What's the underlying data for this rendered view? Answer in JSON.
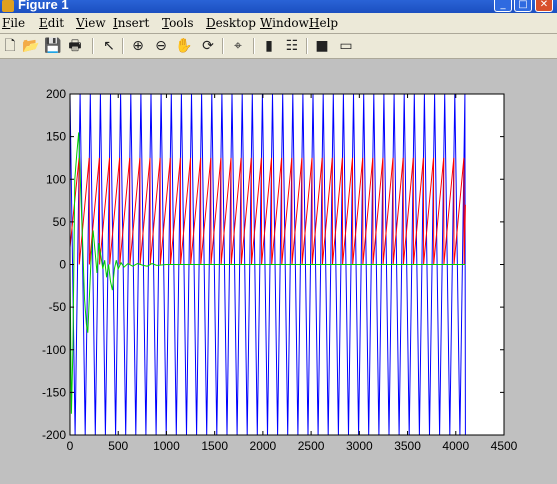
{
  "window": {
    "title": "Figure 1",
    "minimize_glyph": "_",
    "maximize_glyph": "□",
    "close_glyph": "✕"
  },
  "menu": {
    "items": [
      {
        "name": "file",
        "label": "File",
        "u": "F",
        "rest": "ile"
      },
      {
        "name": "edit",
        "label": "Edit",
        "u": "E",
        "rest": "dit"
      },
      {
        "name": "view",
        "label": "View",
        "u": "V",
        "rest": "iew"
      },
      {
        "name": "insert",
        "label": "Insert",
        "u": "I",
        "rest": "nsert"
      },
      {
        "name": "tools",
        "label": "Tools",
        "u": "T",
        "rest": "ools"
      },
      {
        "name": "desktop",
        "label": "Desktop",
        "u": "D",
        "rest": "esktop"
      },
      {
        "name": "window",
        "label": "Window",
        "u": "W",
        "rest": "indow"
      },
      {
        "name": "help",
        "label": "Help",
        "u": "H",
        "rest": "elp"
      }
    ]
  },
  "toolbar": {
    "buttons": [
      {
        "name": "new-figure-icon",
        "glyph": "🗋"
      },
      {
        "name": "open-file-icon",
        "glyph": "📂"
      },
      {
        "name": "save-figure-icon",
        "glyph": "💾"
      },
      {
        "name": "print-figure-icon",
        "glyph": "🖶"
      },
      {
        "name": "edit-plot-icon",
        "glyph": "↖"
      },
      {
        "name": "zoom-in-icon",
        "glyph": "⊕"
      },
      {
        "name": "zoom-out-icon",
        "glyph": "⊖"
      },
      {
        "name": "pan-icon",
        "glyph": "✋"
      },
      {
        "name": "rotate-3d-icon",
        "glyph": "⟳"
      },
      {
        "name": "data-cursor-icon",
        "glyph": "⌖"
      },
      {
        "name": "insert-colorbar-icon",
        "glyph": "▮"
      },
      {
        "name": "insert-legend-icon",
        "glyph": "☷"
      },
      {
        "name": "hide-plot-tools-icon",
        "glyph": "■"
      },
      {
        "name": "show-plot-tools-icon",
        "glyph": "▭"
      }
    ]
  },
  "chart_data": {
    "type": "line",
    "xlim": [
      0,
      4500
    ],
    "ylim": [
      -200,
      200
    ],
    "xticks": [
      0,
      500,
      1000,
      1500,
      2000,
      2500,
      3000,
      3500,
      4000,
      4500
    ],
    "yticks": [
      -200,
      -150,
      -100,
      -50,
      0,
      50,
      100,
      150,
      200
    ],
    "grid": false,
    "series": [
      {
        "color": "#0000ff",
        "style": "periodic-triangle",
        "x_start": 0,
        "x_end": 4100,
        "period": 105,
        "y_min": -200,
        "y_max": 200
      },
      {
        "color": "#ff0000",
        "style": "periodic-sawtooth",
        "x_start": 0,
        "x_end": 4100,
        "period": 105,
        "y_min": 0,
        "y_max": 125
      },
      {
        "color": "#00cc00",
        "style": "transient-decay",
        "points": [
          [
            0,
            0
          ],
          [
            15,
            -175
          ],
          [
            30,
            -100
          ],
          [
            50,
            100
          ],
          [
            70,
            130
          ],
          [
            90,
            155
          ],
          [
            110,
            90
          ],
          [
            130,
            30
          ],
          [
            150,
            -40
          ],
          [
            170,
            -70
          ],
          [
            185,
            -80
          ],
          [
            200,
            -40
          ],
          [
            220,
            10
          ],
          [
            240,
            40
          ],
          [
            260,
            15
          ],
          [
            280,
            -10
          ],
          [
            300,
            25
          ],
          [
            320,
            10
          ],
          [
            340,
            -5
          ],
          [
            360,
            5
          ],
          [
            380,
            -15
          ],
          [
            400,
            0
          ],
          [
            420,
            -20
          ],
          [
            440,
            -30
          ],
          [
            460,
            -5
          ],
          [
            480,
            5
          ],
          [
            500,
            -5
          ],
          [
            530,
            2
          ],
          [
            560,
            -3
          ],
          [
            600,
            1
          ],
          [
            650,
            -2
          ],
          [
            700,
            1
          ],
          [
            760,
            -1
          ],
          [
            800,
            -2
          ],
          [
            850,
            1
          ],
          [
            900,
            -1
          ],
          [
            1000,
            0
          ],
          [
            4100,
            0
          ]
        ]
      }
    ]
  }
}
